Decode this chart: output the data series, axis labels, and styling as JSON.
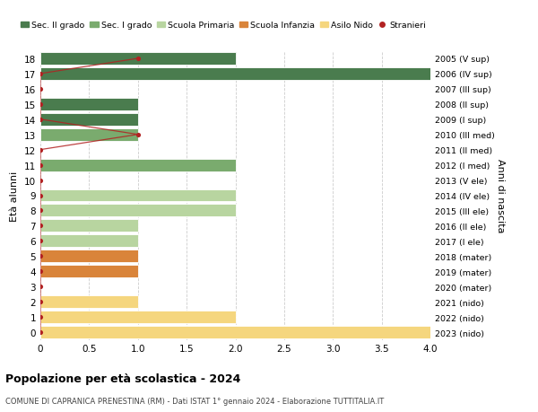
{
  "ages": [
    18,
    17,
    16,
    15,
    14,
    13,
    12,
    11,
    10,
    9,
    8,
    7,
    6,
    5,
    4,
    3,
    2,
    1,
    0
  ],
  "right_labels": [
    "2005 (V sup)",
    "2006 (IV sup)",
    "2007 (III sup)",
    "2008 (II sup)",
    "2009 (I sup)",
    "2010 (III med)",
    "2011 (II med)",
    "2012 (I med)",
    "2013 (V ele)",
    "2014 (IV ele)",
    "2015 (III ele)",
    "2016 (II ele)",
    "2017 (I ele)",
    "2018 (mater)",
    "2019 (mater)",
    "2020 (mater)",
    "2021 (nido)",
    "2022 (nido)",
    "2023 (nido)"
  ],
  "bar_values": [
    2,
    4,
    0,
    1,
    1,
    1,
    0,
    2,
    0,
    2,
    2,
    1,
    1,
    1,
    1,
    0,
    1,
    2,
    4
  ],
  "bar_colors": [
    "#4a7c4e",
    "#4a7c4e",
    "#4a7c4e",
    "#4a7c4e",
    "#4a7c4e",
    "#7aab6e",
    "#7aab6e",
    "#7aab6e",
    "#b8d5a0",
    "#b8d5a0",
    "#b8d5a0",
    "#b8d5a0",
    "#b8d5a0",
    "#d9843a",
    "#d9843a",
    "#d9843a",
    "#f5d67e",
    "#f5d67e",
    "#f5d67e"
  ],
  "stranieri_line_ages": [
    18,
    17,
    16,
    15,
    14,
    13,
    12,
    11,
    10,
    9,
    8,
    7,
    6,
    5,
    4,
    3,
    2,
    1,
    0
  ],
  "stranieri_line_x": [
    1,
    0,
    0,
    0,
    0,
    1,
    0,
    0,
    0,
    0,
    0,
    0,
    0,
    0,
    0,
    0,
    0,
    0,
    0
  ],
  "color_sec2": "#4a7c4e",
  "color_sec1": "#7aab6e",
  "color_prim": "#b8d5a0",
  "color_infanzia": "#d9843a",
  "color_nido": "#f5d67e",
  "color_stranieri": "#b22222",
  "title": "Popolazione per età scolastica - 2024",
  "subtitle": "COMUNE DI CAPRANICA PRENESTINA (RM) - Dati ISTAT 1° gennaio 2024 - Elaborazione TUTTITALIA.IT",
  "ylabel": "Età alunni",
  "right_ylabel": "Anni di nascita",
  "xlim": [
    0,
    4.0
  ],
  "xticks": [
    0,
    0.5,
    1.0,
    1.5,
    2.0,
    2.5,
    3.0,
    3.5,
    4.0
  ],
  "ylim": [
    -0.5,
    18.5
  ],
  "background_color": "#ffffff",
  "grid_color": "#cccccc",
  "legend_labels": [
    "Sec. II grado",
    "Sec. I grado",
    "Scuola Primaria",
    "Scuola Infanzia",
    "Asilo Nido",
    "Stranieri"
  ]
}
